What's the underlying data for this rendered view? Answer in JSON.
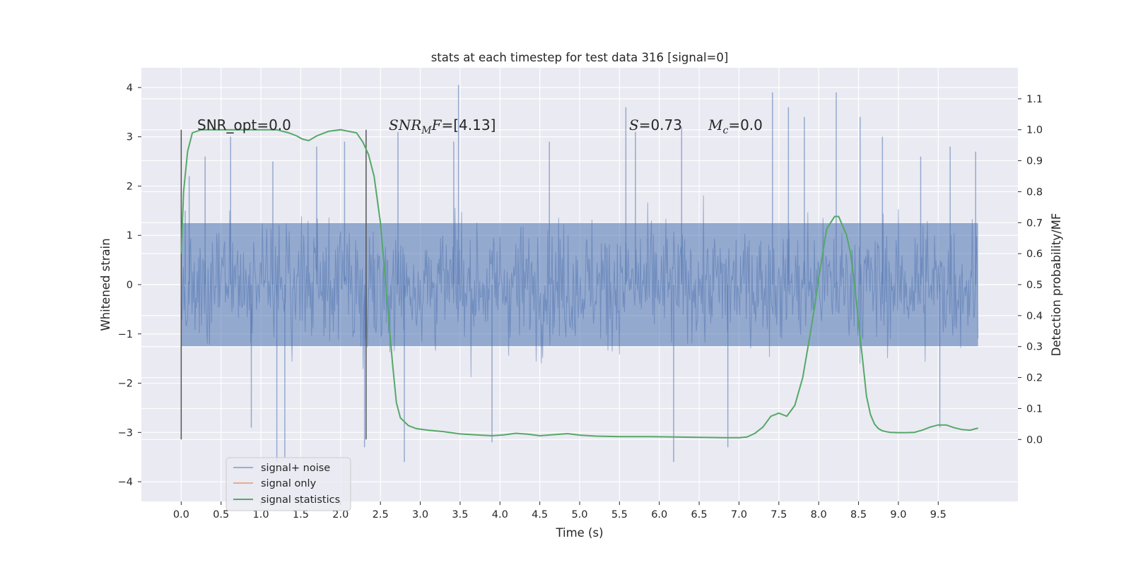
{
  "chart_data": {
    "type": "line",
    "title": "stats at each timestep for test data 316 [signal=0]",
    "xlabel": "Time (s)",
    "ylabel_left": "Whitened strain",
    "ylabel_right": "Detection probability/MF",
    "xlim": [
      -0.5,
      10.5
    ],
    "ylim_left": [
      -4.4,
      4.4
    ],
    "ylim_right": [
      -0.2,
      1.2
    ],
    "x_ticks": [
      "0.0",
      "0.5",
      "1.0",
      "1.5",
      "2.0",
      "2.5",
      "3.0",
      "3.5",
      "4.0",
      "4.5",
      "5.0",
      "5.5",
      "6.0",
      "6.5",
      "7.0",
      "7.5",
      "8.0",
      "8.5",
      "9.0",
      "9.5"
    ],
    "y_ticks_left": [
      "4",
      "3",
      "2",
      "1",
      "0",
      "−1",
      "−2",
      "−3",
      "−4"
    ],
    "y_ticks_right": [
      "1.1",
      "1.0",
      "0.9",
      "0.8",
      "0.7",
      "0.6",
      "0.5",
      "0.4",
      "0.3",
      "0.2",
      "0.1",
      "0.0"
    ],
    "grid": true,
    "legend_placement": "lower-left",
    "annotations": {
      "snr_opt": "SNR_opt=0.0",
      "snr_mf_label": "SNR",
      "snr_mf_sub": "M",
      "snr_mf_italic": "F",
      "snr_mf_value": "=[4.13]",
      "s_label": "S",
      "s_value": "=0.73",
      "mc_label": "M",
      "mc_sub": "c",
      "mc_value": "=0.0"
    },
    "vlines_x": [
      0.0,
      2.32
    ],
    "series": [
      {
        "name": "signal+ noise",
        "axis": "left",
        "color": "#4c72b0",
        "description_range": [
          -3.6,
          4.05
        ],
        "x_range": [
          0.0,
          10.0
        ],
        "spikes": [
          {
            "x": 0.05,
            "y": 1.5
          },
          {
            "x": 0.1,
            "y": 2.2
          },
          {
            "x": 0.3,
            "y": 2.6
          },
          {
            "x": 0.62,
            "y": 3.0
          },
          {
            "x": 0.88,
            "y": -2.9
          },
          {
            "x": 1.15,
            "y": 2.5
          },
          {
            "x": 1.2,
            "y": -3.6
          },
          {
            "x": 1.3,
            "y": -3.5
          },
          {
            "x": 1.7,
            "y": 2.8
          },
          {
            "x": 2.05,
            "y": 2.9
          },
          {
            "x": 2.3,
            "y": -3.3
          },
          {
            "x": 2.72,
            "y": 3.1
          },
          {
            "x": 2.8,
            "y": -3.6
          },
          {
            "x": 3.48,
            "y": 4.05
          },
          {
            "x": 3.42,
            "y": 2.9
          },
          {
            "x": 3.9,
            "y": -3.2
          },
          {
            "x": 4.62,
            "y": 2.9
          },
          {
            "x": 5.58,
            "y": 3.6
          },
          {
            "x": 5.7,
            "y": 3.1
          },
          {
            "x": 6.18,
            "y": -3.6
          },
          {
            "x": 6.28,
            "y": 3.2
          },
          {
            "x": 6.86,
            "y": -3.3
          },
          {
            "x": 7.42,
            "y": 3.9
          },
          {
            "x": 7.62,
            "y": 3.6
          },
          {
            "x": 7.82,
            "y": 3.4
          },
          {
            "x": 8.22,
            "y": 3.9
          },
          {
            "x": 8.52,
            "y": 3.4
          },
          {
            "x": 8.8,
            "y": 3.0
          },
          {
            "x": 9.28,
            "y": 2.6
          },
          {
            "x": 9.52,
            "y": -2.9
          },
          {
            "x": 9.65,
            "y": 2.8
          },
          {
            "x": 9.97,
            "y": 2.7
          }
        ]
      },
      {
        "name": "signal only",
        "axis": "left",
        "color": "#dd8452",
        "x": [
          0.0,
          10.0
        ],
        "y": [
          0.0,
          0.0
        ]
      },
      {
        "name": "signal statistics",
        "axis": "right",
        "color": "#55a868",
        "x": [
          0.0,
          0.03,
          0.08,
          0.14,
          0.25,
          0.5,
          0.8,
          1.0,
          1.2,
          1.35,
          1.45,
          1.52,
          1.6,
          1.7,
          1.85,
          2.0,
          2.1,
          2.2,
          2.28,
          2.35,
          2.42,
          2.5,
          2.55,
          2.6,
          2.65,
          2.7,
          2.75,
          2.85,
          2.95,
          3.1,
          3.3,
          3.5,
          3.7,
          3.9,
          4.05,
          4.2,
          4.35,
          4.5,
          4.7,
          4.85,
          5.0,
          5.2,
          5.5,
          5.9,
          6.2,
          6.5,
          6.8,
          7.0,
          7.1,
          7.2,
          7.3,
          7.4,
          7.5,
          7.6,
          7.7,
          7.8,
          7.9,
          7.95,
          8.0,
          8.05,
          8.1,
          8.15,
          8.2,
          8.25,
          8.3,
          8.35,
          8.4,
          8.45,
          8.5,
          8.55,
          8.6,
          8.65,
          8.7,
          8.75,
          8.8,
          8.85,
          8.9,
          9.0,
          9.1,
          9.2,
          9.3,
          9.4,
          9.5,
          9.6,
          9.7,
          9.8,
          9.9,
          10.0
        ],
        "y": [
          0.6,
          0.8,
          0.93,
          0.99,
          1.0,
          1.0,
          1.0,
          1.0,
          1.0,
          0.99,
          0.98,
          0.97,
          0.965,
          0.98,
          0.995,
          1.0,
          0.995,
          0.99,
          0.96,
          0.92,
          0.85,
          0.7,
          0.55,
          0.4,
          0.25,
          0.12,
          0.07,
          0.045,
          0.035,
          0.03,
          0.025,
          0.018,
          0.015,
          0.012,
          0.015,
          0.02,
          0.017,
          0.012,
          0.016,
          0.019,
          0.014,
          0.011,
          0.009,
          0.009,
          0.008,
          0.007,
          0.006,
          0.006,
          0.008,
          0.02,
          0.04,
          0.075,
          0.085,
          0.075,
          0.11,
          0.2,
          0.35,
          0.43,
          0.52,
          0.6,
          0.68,
          0.7,
          0.72,
          0.72,
          0.69,
          0.66,
          0.6,
          0.5,
          0.38,
          0.26,
          0.14,
          0.08,
          0.05,
          0.035,
          0.028,
          0.025,
          0.023,
          0.022,
          0.022,
          0.023,
          0.03,
          0.04,
          0.047,
          0.047,
          0.038,
          0.032,
          0.03,
          0.037
        ]
      }
    ]
  }
}
